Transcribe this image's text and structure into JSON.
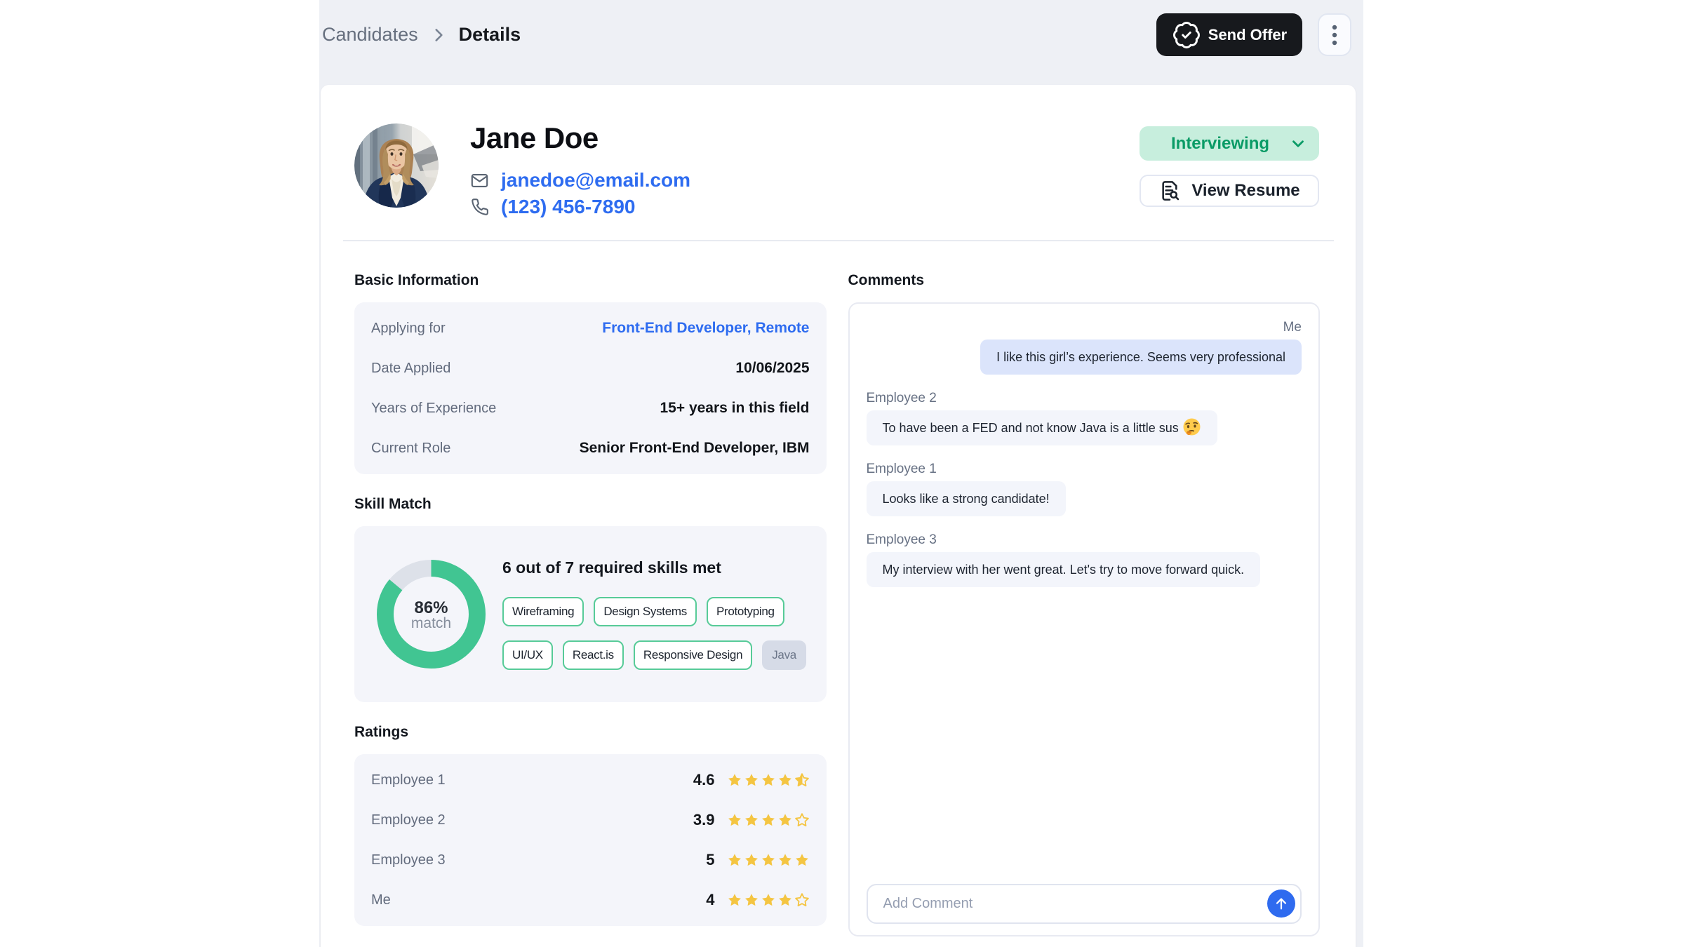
{
  "breadcrumb": {
    "parent": "Candidates",
    "separator_icon": "chevron-right-icon",
    "current": "Details"
  },
  "topbar": {
    "send_offer_label": "Send Offer",
    "send_offer_icon": "badge-check-icon",
    "more_menu_icon": "kebab-vertical-icon"
  },
  "profile": {
    "name": "Jane Doe",
    "avatar": "photo-of-candidate",
    "email": {
      "icon": "mail-icon",
      "value": "janedoe@email.com"
    },
    "phone": {
      "icon": "phone-icon",
      "value": "(123) 456-7890"
    },
    "status": {
      "label": "Interviewing",
      "chevron_icon": "chevron-down-icon"
    },
    "view_resume": {
      "label": "View Resume",
      "icon": "file-search-icon"
    }
  },
  "basic_information": {
    "title": "Basic Information",
    "rows": [
      {
        "label": "Applying for",
        "value": "Front-End Developer, Remote",
        "link": true
      },
      {
        "label": "Date Applied",
        "value": "10/06/2025",
        "link": false
      },
      {
        "label": "Years of Experience",
        "value": "15+ years in this field",
        "link": false
      },
      {
        "label": "Current Role",
        "value": "Senior Front-End Developer, IBM",
        "link": false
      }
    ]
  },
  "skill_match": {
    "title": "Skill Match",
    "percent": 86,
    "percent_label": "86%",
    "percent_sublabel": "match",
    "summary": "6 out of 7 required skills met",
    "skills_met": [
      "Wireframing",
      "Design Systems",
      "Prototyping",
      "UI/UX",
      "React.is",
      "Responsive Design"
    ],
    "skills_missing": [
      "Java"
    ],
    "donut_color": "#41c592",
    "donut_track_color": "#dde1e9"
  },
  "ratings": {
    "title": "Ratings",
    "star_color": "#f4c542",
    "rows": [
      {
        "name": "Employee 1",
        "score": "4.6",
        "stars": 4.5
      },
      {
        "name": "Employee 2",
        "score": "3.9",
        "stars": 4
      },
      {
        "name": "Employee 3",
        "score": "5",
        "stars": 5
      },
      {
        "name": "Me",
        "score": "4",
        "stars": 4
      }
    ]
  },
  "comments": {
    "title": "Comments",
    "messages": [
      {
        "author": "Me",
        "side": "right",
        "text": "I like this girl’s experience. Seems very professional"
      },
      {
        "author": "Employee 2",
        "side": "left",
        "text": "To have been a FED and not know Java is a little sus 🤔"
      },
      {
        "author": "Employee 1",
        "side": "left",
        "text": "Looks like a strong candidate!"
      },
      {
        "author": "Employee 3",
        "side": "left",
        "text": "My interview with her went great. Let's try to move forward quick."
      }
    ],
    "input_placeholder": "Add Comment",
    "send_icon": "arrow-up-icon"
  },
  "colors": {
    "page_background": "#eef0f5",
    "card_background": "#ffffff",
    "accent_blue": "#2e6cf0",
    "status_green_bg": "#c7eedd",
    "status_green_text": "#0a9b66",
    "chip_green_border": "#57cb98",
    "star_amber": "#f4c542",
    "bubble_blue": "#dbe4fb",
    "bubble_gray": "#f3f5fb",
    "send_button_blue": "#2f6bef",
    "dark_button": "#17191d"
  }
}
